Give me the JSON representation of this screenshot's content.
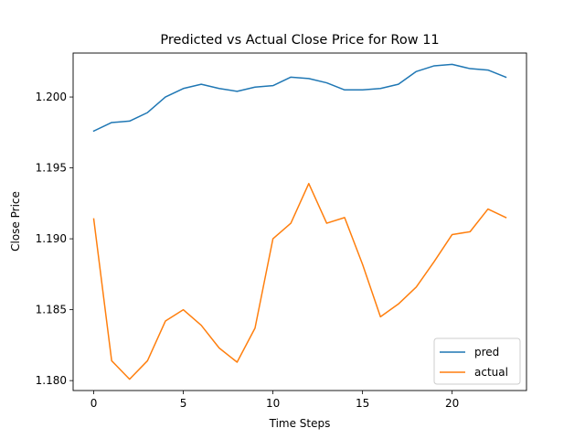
{
  "chart_data": {
    "type": "line",
    "title": "Predicted vs Actual Close Price for Row 11",
    "xlabel": "Time Steps",
    "ylabel": "Close Price",
    "xlim": [
      -1.15,
      24.15
    ],
    "ylim": [
      1.1793,
      1.2031
    ],
    "xticks": [
      0,
      5,
      10,
      15,
      20
    ],
    "yticks": [
      1.18,
      1.185,
      1.19,
      1.195,
      1.2
    ],
    "ytick_labels": [
      "1.180",
      "1.185",
      "1.190",
      "1.195",
      "1.200"
    ],
    "grid": false,
    "legend_position": "lower right",
    "x": [
      0,
      1,
      2,
      3,
      4,
      5,
      6,
      7,
      8,
      9,
      10,
      11,
      12,
      13,
      14,
      15,
      16,
      17,
      18,
      19,
      20,
      21,
      22,
      23
    ],
    "series": [
      {
        "name": "pred",
        "color": "#1f77b4",
        "values": [
          1.1976,
          1.1982,
          1.1983,
          1.1989,
          1.2,
          1.2006,
          1.2009,
          1.2006,
          1.2004,
          1.2007,
          1.2008,
          1.2014,
          1.2013,
          1.201,
          1.2005,
          1.2005,
          1.2006,
          1.2009,
          1.2018,
          1.2022,
          1.2023,
          1.202,
          1.2019,
          1.2014
        ]
      },
      {
        "name": "actual",
        "color": "#ff7f0e",
        "values": [
          1.1914,
          1.1814,
          1.1801,
          1.1814,
          1.1842,
          1.185,
          1.1839,
          1.1823,
          1.1813,
          1.1837,
          1.19,
          1.1911,
          1.1939,
          1.1911,
          1.1915,
          1.1882,
          1.1845,
          1.1854,
          1.1866,
          1.1884,
          1.1903,
          1.1905,
          1.1921,
          1.1915
        ]
      }
    ]
  }
}
